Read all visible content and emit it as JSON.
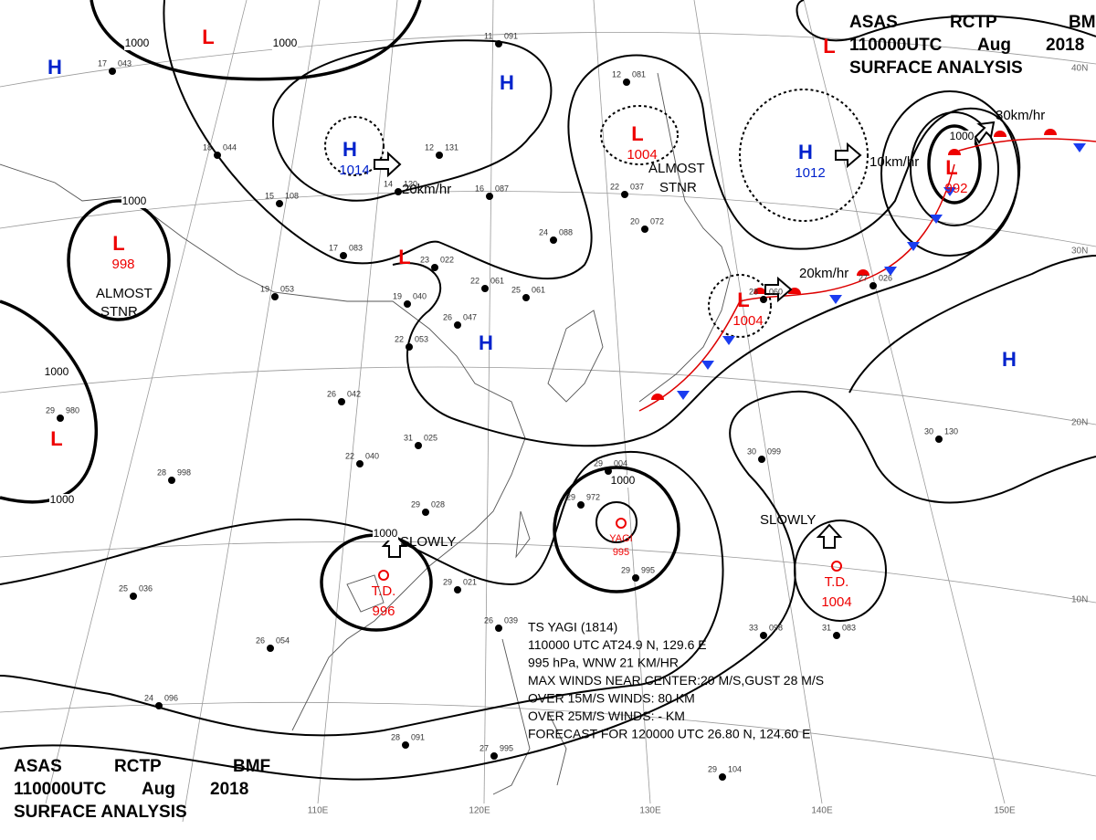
{
  "header": {
    "line1": [
      "ASAS",
      "RCTP",
      "BMF"
    ],
    "line2": [
      "110000UTC",
      "Aug",
      "2018"
    ],
    "line3": "SURFACE ANALYSIS"
  },
  "systems": [
    {
      "symbol": "H"
    },
    {
      "symbol": "L"
    },
    {
      "symbol": "H",
      "pressure": "1014"
    },
    {
      "symbol": "H"
    },
    {
      "symbol": "L",
      "pressure": "1004"
    },
    {
      "symbol": "H",
      "pressure": "1012"
    },
    {
      "symbol": "L",
      "pressure": "992"
    },
    {
      "symbol": "L",
      "pressure": "998"
    },
    {
      "symbol": "L"
    },
    {
      "symbol": "H"
    },
    {
      "symbol": "L",
      "pressure": "1004"
    },
    {
      "symbol": "H"
    },
    {
      "symbol": "L"
    },
    {
      "symbol": "L"
    }
  ],
  "tropical": [
    {
      "name": "YAGI",
      "pressure": "995"
    },
    {
      "name": "T.D.",
      "pressure": "996"
    },
    {
      "name": "T.D.",
      "pressure": "1004"
    }
  ],
  "isobar_labels": [
    "1000",
    "1000",
    "1000",
    "1000",
    "1000",
    "1000",
    "1000",
    "1000"
  ],
  "motions": [
    "20km/hr",
    "10km/hr",
    "30km/hr",
    "20km/hr",
    "SLOWLY",
    "SLOWLY",
    "ALMOST",
    "STNR",
    "ALMOST",
    "STNR"
  ],
  "latitude_labels": [
    "40N",
    "30N",
    "20N",
    "10N"
  ],
  "longitude_labels": [
    "110E",
    "120E",
    "130E",
    "140E",
    "150E"
  ],
  "typhoon_info": [
    "TS  YAGI  (1814)",
    "110000 UTC  AT24.9 N, 129.6 E",
    "995 hPa, WNW  21 KM/HR",
    "MAX WINDS NEAR CENTER:20 M/S,GUST 28 M/S",
    "OVER 15M/S WINDS: 80 KM",
    "OVER 25M/S WINDS: - KM",
    "FORECAST FOR 120000 UTC 26.80 N, 124.60 E"
  ],
  "station_plots": [
    [
      "11",
      "091"
    ],
    [
      "12",
      "081"
    ],
    [
      "12",
      "131"
    ],
    [
      "16",
      "087"
    ],
    [
      "14",
      "120"
    ],
    [
      "17",
      "083"
    ],
    [
      "19",
      "053"
    ],
    [
      "23",
      "022"
    ],
    [
      "19",
      "040"
    ],
    [
      "22",
      "061"
    ],
    [
      "25",
      "061"
    ],
    [
      "22",
      "053"
    ],
    [
      "26",
      "047"
    ],
    [
      "26",
      "042"
    ],
    [
      "31",
      "025"
    ],
    [
      "22",
      "040"
    ],
    [
      "29",
      "028"
    ],
    [
      "29",
      "004"
    ],
    [
      "29",
      "972"
    ],
    [
      "29",
      "995"
    ],
    [
      "29",
      "021"
    ],
    [
      "26",
      "039"
    ],
    [
      "27",
      "995"
    ],
    [
      "28",
      "091"
    ],
    [
      "30",
      "099"
    ],
    [
      "30",
      "130"
    ],
    [
      "33",
      "098"
    ],
    [
      "31",
      "083"
    ],
    [
      "29",
      "104"
    ],
    [
      "28",
      "060"
    ],
    [
      "27",
      "026"
    ],
    [
      "25",
      "036"
    ],
    [
      "26",
      "054"
    ],
    [
      "24",
      "096"
    ],
    [
      "28",
      "998"
    ],
    [
      "29",
      "980"
    ],
    [
      "24",
      "088"
    ],
    [
      "20",
      "072"
    ],
    [
      "22",
      "037"
    ],
    [
      "18",
      "044"
    ],
    [
      "17",
      "043"
    ],
    [
      "15",
      "108"
    ]
  ]
}
